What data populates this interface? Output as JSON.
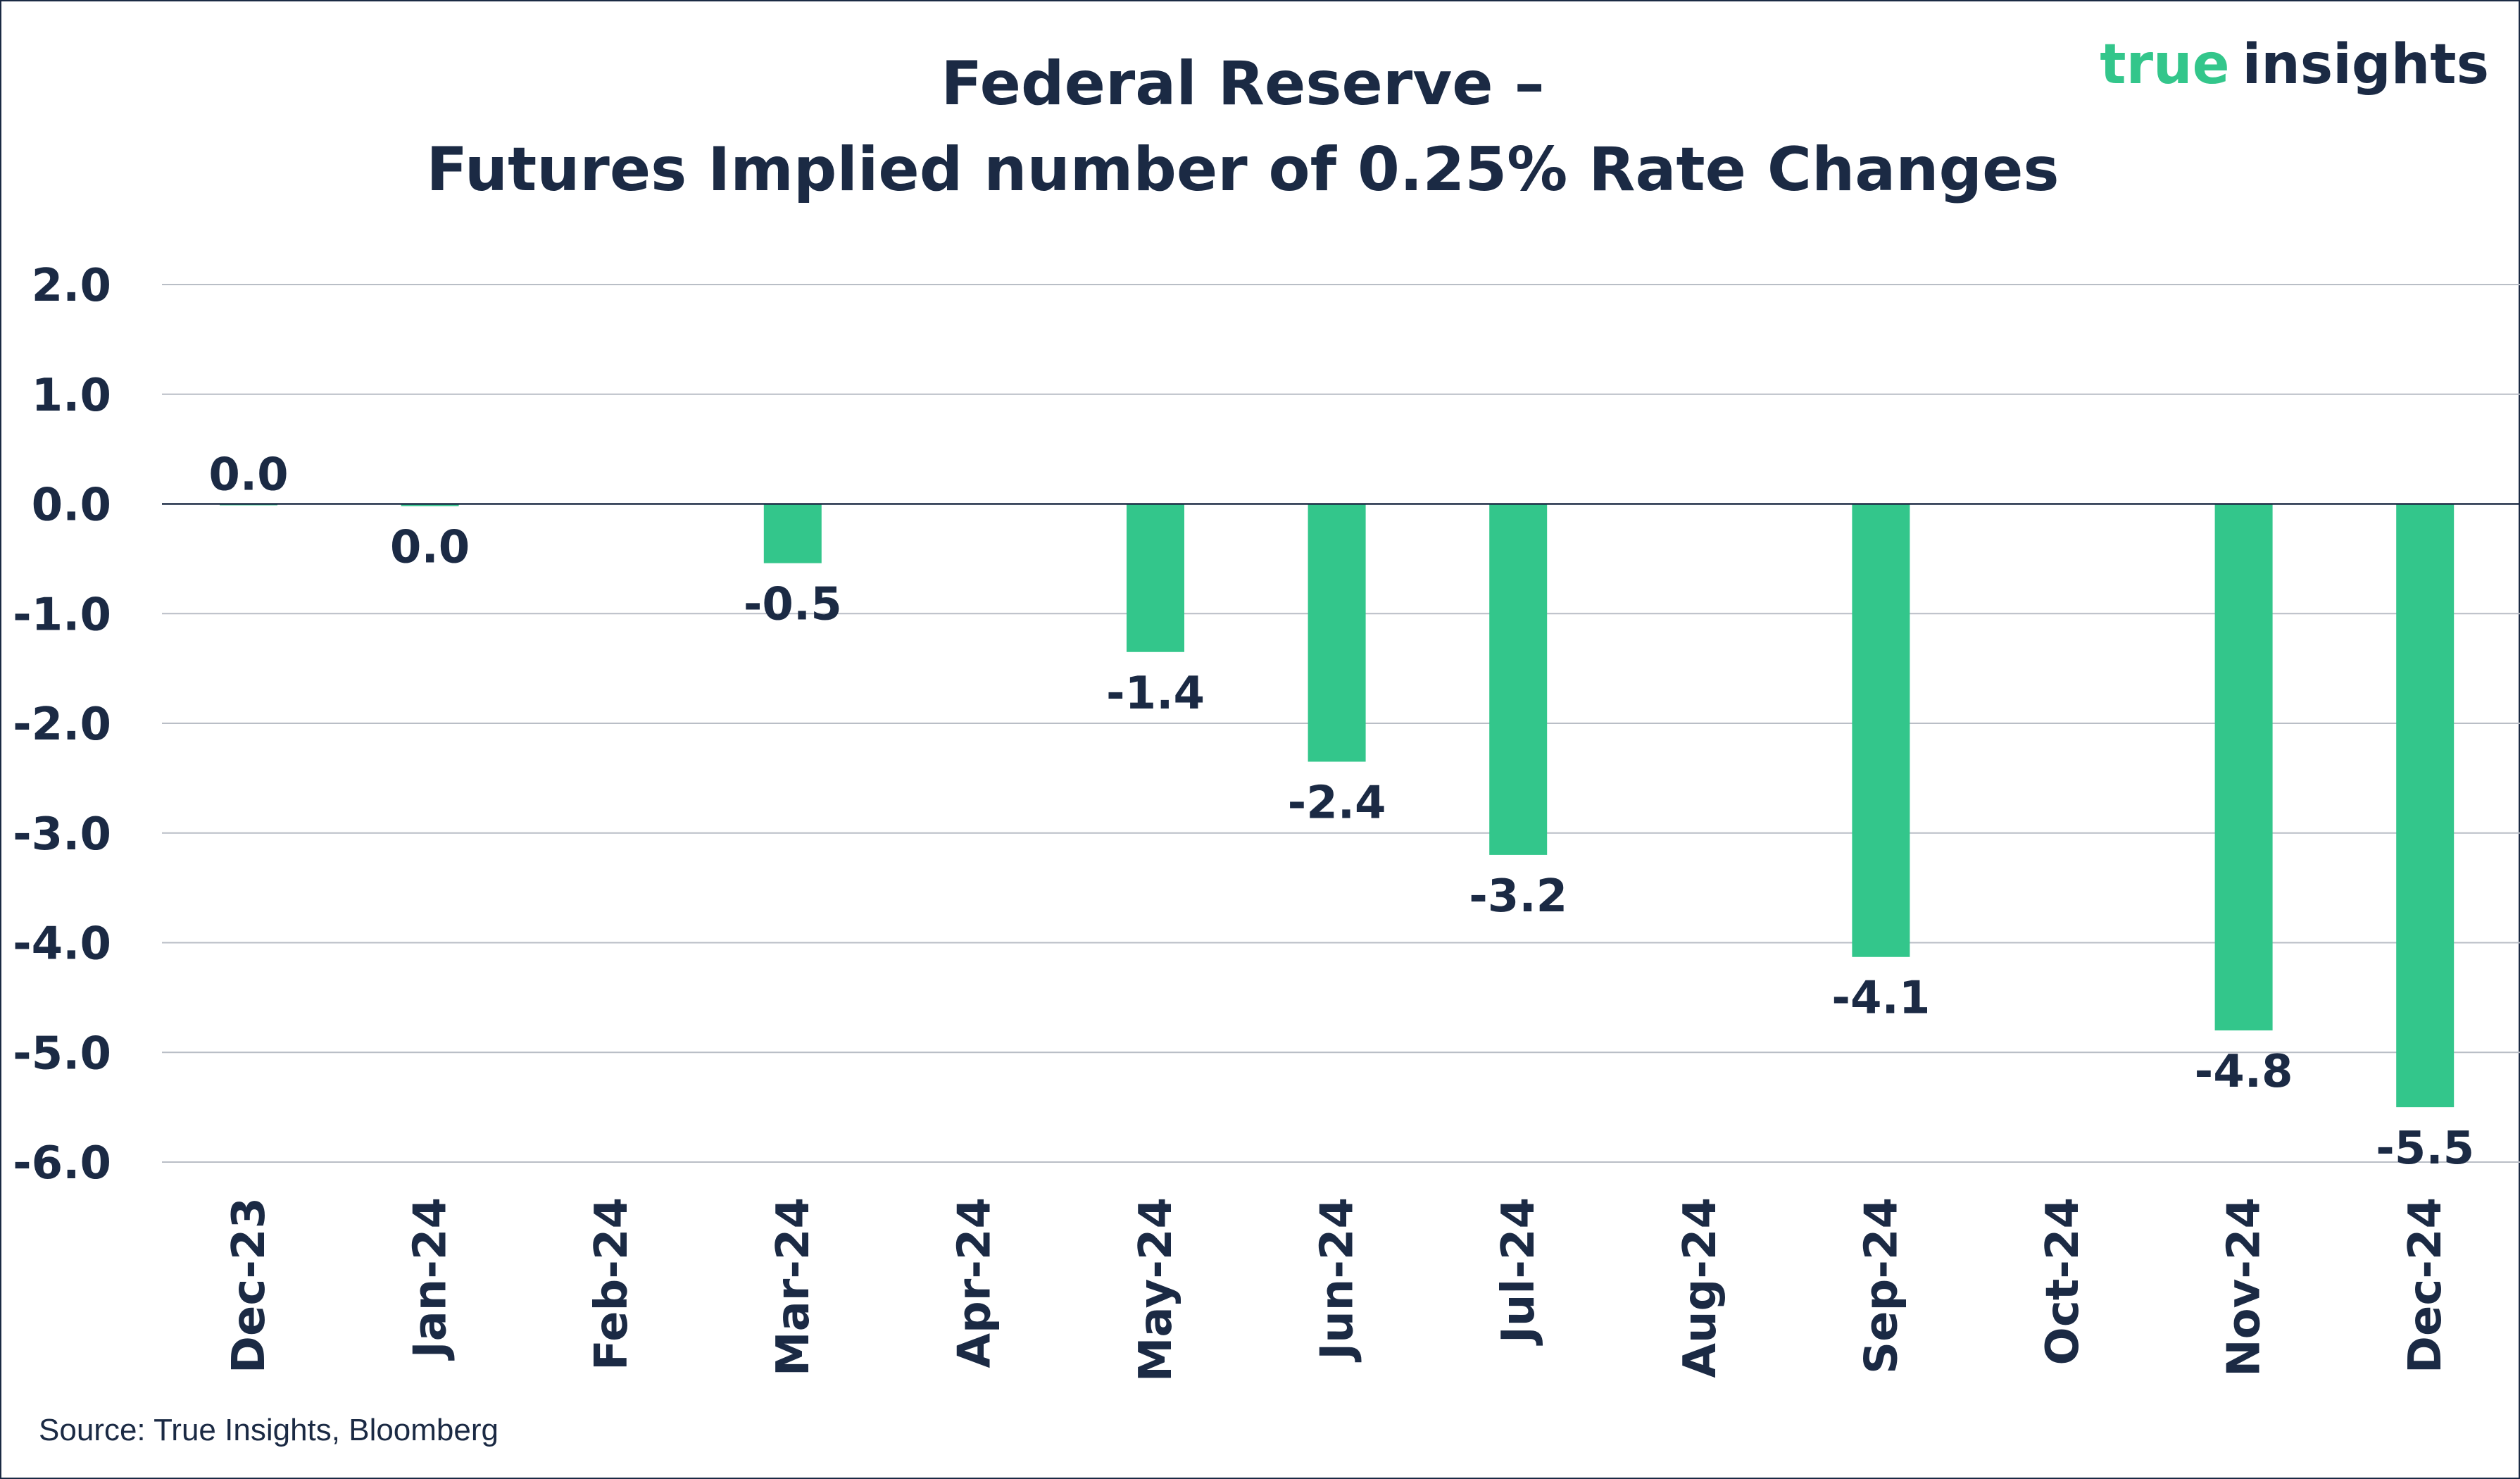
{
  "logo": {
    "part1": "true",
    "part2": "insights"
  },
  "source": "Source: True Insights, Bloomberg",
  "colors": {
    "bar": "#33c68b",
    "text": "#1b2a44",
    "grid": "#b9bec6"
  },
  "chart_data": {
    "type": "bar",
    "title": [
      "Federal Reserve –",
      "Futures Implied number of 0.25% Rate Changes"
    ],
    "xlabel": "",
    "ylabel": "",
    "ylim": [
      -6.0,
      2.0
    ],
    "yticks": [
      2.0,
      1.0,
      0.0,
      -1.0,
      -2.0,
      -3.0,
      -4.0,
      -5.0,
      -6.0
    ],
    "ytick_labels": [
      "2.0",
      "1.0",
      "0.0",
      "-1.0",
      "-2.0",
      "-3.0",
      "-4.0",
      "-5.0",
      "-6.0"
    ],
    "grid": true,
    "legend": false,
    "categories": [
      "Dec-23",
      "Jan-24",
      "Feb-24",
      "Mar-24",
      "Apr-24",
      "May-24",
      "Jun-24",
      "Jul-24",
      "Aug-24",
      "Sep-24",
      "Oct-24",
      "Nov-24",
      "Dec-24"
    ],
    "values": [
      0.0,
      -0.02,
      null,
      -0.54,
      null,
      -1.35,
      -2.35,
      -3.2,
      null,
      -4.13,
      null,
      -4.8,
      -5.5
    ],
    "data_labels": [
      "0.0",
      "0.0",
      "",
      "-0.5",
      "",
      "-1.4",
      "-2.4",
      "-3.2",
      "",
      "-4.1",
      "",
      "-4.8",
      "-5.5"
    ]
  }
}
